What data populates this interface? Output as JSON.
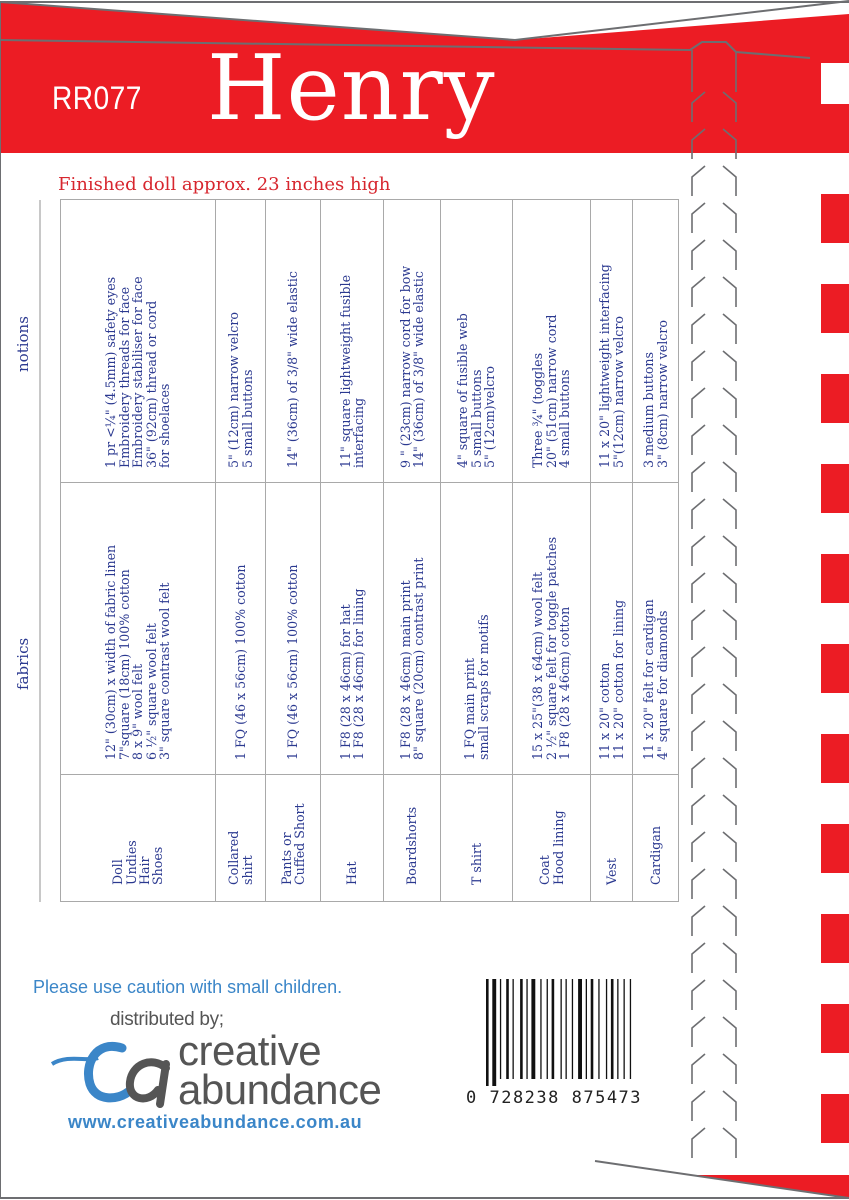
{
  "header": {
    "code": "RR077",
    "title": "Henry"
  },
  "subtitle": "Finished doll approx. 23 inches high",
  "table": {
    "labels": {
      "notions": "notions",
      "fabrics": "fabrics"
    },
    "rows": [
      {
        "name": [
          "Doll",
          "Undies",
          "Hair",
          "Shoes"
        ],
        "fabrics": [
          "12\" (30cm) x width of fabric linen",
          "7\"square (18cm) 100% cotton",
          "8 x 9\" wool felt",
          "6 ½\" square wool felt",
          "3\" square contrast wool felt"
        ],
        "notions": [
          "1 pr <¼\" (4.5mm) safety eyes",
          "Embroidery threads for face",
          "Embroidery stabiliser for face",
          "36\" (92cm) thread or cord",
          "for shoelaces"
        ]
      },
      {
        "name": [
          "Collared",
          "shirt"
        ],
        "fabrics": [
          "1 FQ (46 x 56cm) 100% cotton"
        ],
        "notions": [
          "5\" (12cm) narrow velcro",
          "5 small buttons"
        ]
      },
      {
        "name": [
          "Pants or",
          "Cuffed Short"
        ],
        "fabrics": [
          "1 FQ (46 x 56cm) 100% cotton"
        ],
        "notions": [
          "14\" (36cm) of 3/8\" wide elastic"
        ]
      },
      {
        "name": [
          "Hat"
        ],
        "fabrics": [
          "1 F8 (28 x 46cm) for hat",
          "1 F8 (28 x 46cm) for lining"
        ],
        "notions": [
          "11\" square lightweight fusible",
          "interfacing"
        ]
      },
      {
        "name": [
          "Boardshorts"
        ],
        "fabrics": [
          "1 F8 (28 x 46cm) main print",
          "8\" square (20cm) contrast print"
        ],
        "notions": [
          "9 \" (23cm) narrow cord for bow",
          "14\" (36cm) of 3/8\" wide elastic"
        ]
      },
      {
        "name": [
          "T shirt"
        ],
        "fabrics": [
          "1 FQ main print",
          "small scraps for motifs"
        ],
        "notions": [
          "4\" square of fusible web",
          "5 small buttons",
          "5\" (12cm)velcro"
        ]
      },
      {
        "name": [
          "Coat",
          "Hood lining"
        ],
        "fabrics": [
          "15 x 25\"(38 x 64cm) wool felt",
          "2 ½\" square felt for toggle patches",
          "1 F8 (28 x 46cm) cotton"
        ],
        "notions": [
          "Three ¾\" (toggles",
          "20\" (51cm) narrow cord",
          "4 small buttons"
        ]
      },
      {
        "name": [
          "Vest"
        ],
        "fabrics": [
          "11 x 20\" cotton",
          "11 x 20\" cotton for lining"
        ],
        "notions": [
          "11 x 20\" lightweight interfacing",
          "5\"(12cm) narrow velcro"
        ]
      },
      {
        "name": [
          "Cardigan"
        ],
        "fabrics": [
          "11 x 20\" felt for cardigan",
          "4\" square for diamonds"
        ],
        "notions": [
          "3 medium buttons",
          "3\" (8cm) narrow velcro"
        ]
      }
    ]
  },
  "caution": "Please use caution with small children.",
  "distributor": {
    "prefix": "distributed by;",
    "logo_monogram": "ca",
    "name_line1": "creative",
    "name_line2": "abundance",
    "url": "www.creativeabundance.com.au"
  },
  "barcode": {
    "digits": "0 728238 875473"
  },
  "colors": {
    "brand_red": "#ec1c24",
    "text_blue": "#2b3990",
    "accent_blue": "#3b86c8",
    "outline_gray": "#6d6e71"
  }
}
